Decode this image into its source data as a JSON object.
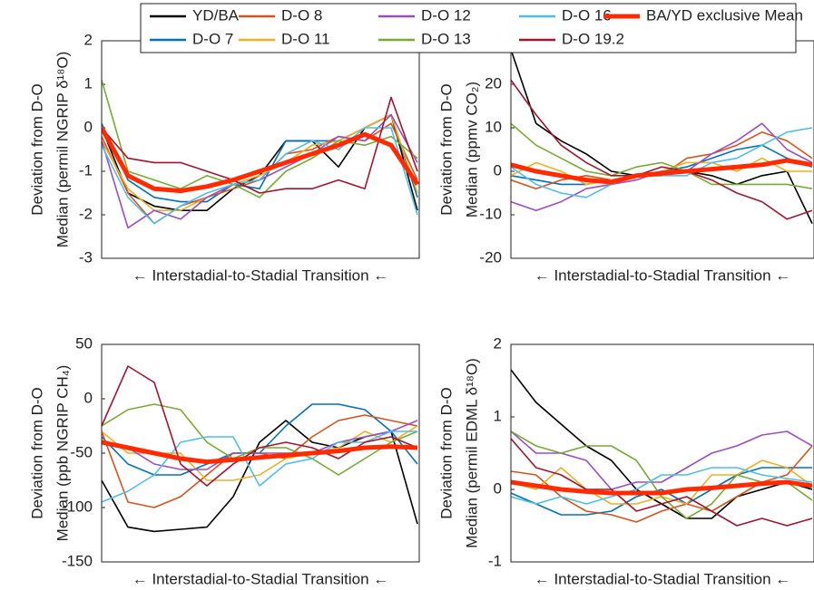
{
  "chart_data": [
    {
      "type": "line",
      "ylabel": [
        "Deviation from D-O",
        "Median (permil NGRIP δ¹⁸O)"
      ],
      "xlabel": "← Interstadial-to-Stadial Transition ←",
      "ylim": [
        -3,
        2
      ],
      "yticks": [
        -3,
        -2,
        -1,
        0,
        1,
        2
      ],
      "series": [
        {
          "name": "YD/BA",
          "color": "#000000",
          "values": [
            0,
            -1.5,
            -1.8,
            -1.9,
            -1.9,
            -1.4,
            -1.1,
            -0.3,
            -0.3,
            -0.9,
            0.0,
            0.3,
            -1.9
          ]
        },
        {
          "name": "D-O 7",
          "color": "#0072bd",
          "values": [
            0.1,
            -1.2,
            -1.6,
            -1.7,
            -1.7,
            -1.3,
            -1.4,
            -0.3,
            -0.3,
            -0.3,
            0.0,
            0.3,
            -1.6
          ]
        },
        {
          "name": "D-O 8",
          "color": "#d95319",
          "values": [
            -0.2,
            -1.5,
            -2.2,
            -1.8,
            -1.6,
            -1.4,
            -1.2,
            -0.6,
            -0.5,
            -0.2,
            -0.3,
            0.1,
            -1.2
          ]
        },
        {
          "name": "D-O 11",
          "color": "#edb120",
          "values": [
            -0.3,
            -1.4,
            -1.9,
            -1.9,
            -1.6,
            -1.3,
            -1.1,
            -0.8,
            -0.4,
            -0.3,
            0.0,
            0.3,
            -1.5
          ]
        },
        {
          "name": "D-O 12",
          "color": "#9b4dc4",
          "values": [
            -0.3,
            -2.3,
            -1.9,
            -2.1,
            -1.6,
            -1.3,
            -1.2,
            -0.9,
            -0.6,
            -0.2,
            -0.3,
            0.3,
            -0.8
          ]
        },
        {
          "name": "D-O 13",
          "color": "#77ac30",
          "values": [
            1.1,
            -1.0,
            -1.2,
            -1.4,
            -1.1,
            -1.3,
            -1.6,
            -1.0,
            -0.7,
            -0.3,
            -0.4,
            -0.2,
            -0.7
          ]
        },
        {
          "name": "D-O 16",
          "color": "#4dbeee",
          "values": [
            -0.4,
            -1.6,
            -2.2,
            -1.8,
            -1.5,
            -1.3,
            -1.2,
            -0.6,
            -0.3,
            -0.5,
            0.0,
            0.0,
            -2.0
          ]
        },
        {
          "name": "D-O 19.2",
          "color": "#a2142f",
          "values": [
            0.0,
            -0.7,
            -0.8,
            -0.8,
            -1.0,
            -1.2,
            -1.5,
            -1.4,
            -1.4,
            -1.2,
            -1.4,
            0.7,
            -1.0
          ]
        },
        {
          "name": "BA/YD exclusive Mean",
          "color": "#ff2a00",
          "values": [
            0.0,
            -1.1,
            -1.4,
            -1.45,
            -1.35,
            -1.2,
            -1.0,
            -0.8,
            -0.6,
            -0.4,
            -0.15,
            -0.4,
            -1.3
          ]
        }
      ]
    },
    {
      "type": "line",
      "ylabel": [
        "Deviation from D-O",
        "Median (ppmv CO₂)"
      ],
      "xlabel": "← Interstadial-to-Stadial Transition ←",
      "ylim": [
        -20,
        30
      ],
      "yticks": [
        -20,
        -10,
        0,
        10,
        20
      ],
      "series": [
        {
          "name": "YD/BA",
          "color": "#000000",
          "values": [
            28,
            11,
            7,
            4,
            0,
            -1,
            -1,
            0,
            -1,
            -3,
            -1,
            0,
            -12
          ]
        },
        {
          "name": "D-O 7",
          "color": "#0072bd",
          "values": [
            -1,
            -2,
            -3,
            -3,
            -2,
            -1,
            0,
            1,
            3,
            5,
            6,
            3,
            1
          ]
        },
        {
          "name": "D-O 8",
          "color": "#d95319",
          "values": [
            -2,
            -4,
            -2,
            -1,
            -2,
            -1,
            -1,
            3,
            4,
            6,
            9,
            7,
            3
          ]
        },
        {
          "name": "D-O 11",
          "color": "#edb120",
          "values": [
            -1,
            2,
            0,
            -3,
            -2,
            -1,
            0,
            2,
            2,
            0,
            3,
            0,
            0
          ]
        },
        {
          "name": "D-O 12",
          "color": "#9b4dc4",
          "values": [
            -7,
            -9,
            -7,
            -4,
            -3,
            -2,
            0,
            0,
            4,
            7,
            11,
            5,
            2
          ]
        },
        {
          "name": "D-O 13",
          "color": "#77ac30",
          "values": [
            11,
            6,
            3,
            0,
            -1,
            1,
            2,
            0,
            -3,
            -3,
            -3,
            -3,
            -4
          ]
        },
        {
          "name": "D-O 16",
          "color": "#4dbeee",
          "values": [
            1,
            -3,
            -5,
            -6,
            -3,
            -1,
            -1,
            -1,
            2,
            3,
            6,
            9,
            10
          ]
        },
        {
          "name": "D-O 19.2",
          "color": "#a2142f",
          "values": [
            21,
            13,
            6,
            2,
            -1,
            -1,
            1,
            0,
            -2,
            -5,
            -7,
            -11,
            -9
          ]
        },
        {
          "name": "BA/YD exclusive Mean",
          "color": "#ff2a00",
          "values": [
            1.5,
            0,
            -1,
            -2,
            -2.5,
            -1,
            -0.5,
            0,
            0.5,
            1,
            1.5,
            2.5,
            1.5
          ]
        }
      ]
    },
    {
      "type": "line",
      "ylabel": [
        "Deviation from D-O",
        "Median (ppb NGRIP CH₄)"
      ],
      "xlabel": "← Interstadial-to-Stadial Transition ←",
      "ylim": [
        -150,
        50
      ],
      "yticks": [
        -150,
        -100,
        -50,
        0,
        50
      ],
      "series": [
        {
          "name": "YD/BA",
          "color": "#000000",
          "values": [
            -75,
            -118,
            -122,
            -120,
            -118,
            -90,
            -40,
            -20,
            -40,
            -45,
            -35,
            -30,
            -115
          ]
        },
        {
          "name": "D-O 7",
          "color": "#0072bd",
          "values": [
            -35,
            -60,
            -70,
            -70,
            -60,
            -50,
            -50,
            -25,
            -5,
            -5,
            -10,
            -30,
            -60
          ]
        },
        {
          "name": "D-O 8",
          "color": "#d95319",
          "values": [
            -30,
            -95,
            -100,
            -90,
            -70,
            -50,
            -50,
            -55,
            -35,
            -20,
            -15,
            -20,
            -25
          ]
        },
        {
          "name": "D-O 11",
          "color": "#edb120",
          "values": [
            -30,
            -50,
            -50,
            -50,
            -75,
            -75,
            -70,
            -55,
            -50,
            -45,
            -30,
            -40,
            -25
          ]
        },
        {
          "name": "D-O 12",
          "color": "#9b4dc4",
          "values": [
            -40,
            -45,
            -60,
            -65,
            -65,
            -50,
            -50,
            -50,
            -50,
            -40,
            -35,
            -30,
            -20
          ]
        },
        {
          "name": "D-O 13",
          "color": "#77ac30",
          "values": [
            -25,
            -10,
            -5,
            -10,
            -40,
            -55,
            -45,
            -45,
            -55,
            -70,
            -55,
            -40,
            -30
          ]
        },
        {
          "name": "D-O 16",
          "color": "#4dbeee",
          "values": [
            -95,
            -85,
            -70,
            -40,
            -35,
            -35,
            -80,
            -60,
            -55,
            -40,
            -40,
            -30,
            -30
          ]
        },
        {
          "name": "D-O 19.2",
          "color": "#a2142f",
          "values": [
            -25,
            30,
            15,
            -60,
            -80,
            -60,
            -45,
            -40,
            -45,
            -55,
            -40,
            -35,
            -45
          ]
        },
        {
          "name": "BA/YD exclusive Mean",
          "color": "#ff2a00",
          "values": [
            -40,
            -45,
            -50,
            -55,
            -58,
            -56,
            -54,
            -52,
            -50,
            -48,
            -45,
            -44,
            -45
          ]
        }
      ]
    },
    {
      "type": "line",
      "ylabel": [
        "Deviation from D-O",
        "Median (permil EDML δ¹⁸O)"
      ],
      "xlabel": "← Interstadial-to-Stadial Transition ←",
      "ylim": [
        -1,
        2
      ],
      "yticks": [
        -1,
        0,
        1,
        2
      ],
      "series": [
        {
          "name": "YD/BA",
          "color": "#000000",
          "values": [
            1.65,
            1.2,
            0.9,
            0.6,
            0.4,
            0.0,
            -0.2,
            -0.4,
            -0.4,
            -0.1,
            0.0,
            0.1,
            0.0
          ]
        },
        {
          "name": "D-O 7",
          "color": "#0072bd",
          "values": [
            -0.05,
            -0.2,
            -0.35,
            -0.35,
            -0.3,
            -0.1,
            0.0,
            -0.2,
            0.0,
            0.2,
            0.3,
            0.3,
            0.3
          ]
        },
        {
          "name": "D-O 8",
          "color": "#d95319",
          "values": [
            0.25,
            0.2,
            -0.1,
            -0.3,
            -0.35,
            -0.45,
            -0.3,
            -0.2,
            -0.3,
            -0.1,
            0.1,
            0.2,
            0.6
          ]
        },
        {
          "name": "D-O 11",
          "color": "#edb120",
          "values": [
            0.1,
            0.0,
            0.3,
            0.0,
            -0.2,
            -0.2,
            -0.1,
            -0.2,
            0.2,
            0.2,
            0.4,
            0.3,
            0.05
          ]
        },
        {
          "name": "D-O 12",
          "color": "#9b4dc4",
          "values": [
            0.8,
            0.5,
            0.5,
            0.4,
            0.0,
            0.1,
            0.1,
            0.3,
            0.5,
            0.6,
            0.75,
            0.8,
            0.6
          ]
        },
        {
          "name": "D-O 13",
          "color": "#77ac30",
          "values": [
            0.8,
            0.6,
            0.5,
            0.6,
            0.6,
            0.4,
            -0.1,
            -0.4,
            -0.2,
            0.2,
            0.1,
            0.1,
            -0.15
          ]
        },
        {
          "name": "D-O 16",
          "color": "#4dbeee",
          "values": [
            -0.1,
            -0.2,
            -0.1,
            -0.2,
            -0.1,
            0.0,
            0.2,
            0.2,
            0.3,
            0.3,
            0.2,
            0.15,
            0.1
          ]
        },
        {
          "name": "D-O 19.2",
          "color": "#a2142f",
          "values": [
            0.7,
            0.3,
            0.2,
            0.0,
            0.0,
            -0.3,
            -0.2,
            -0.1,
            -0.3,
            -0.5,
            -0.4,
            -0.5,
            -0.4
          ]
        },
        {
          "name": "BA/YD exclusive Mean",
          "color": "#ff2a00",
          "values": [
            0.1,
            0.05,
            0.0,
            -0.03,
            -0.05,
            -0.05,
            -0.05,
            0.0,
            0.02,
            0.05,
            0.08,
            0.1,
            0.05
          ]
        }
      ]
    }
  ]
}
